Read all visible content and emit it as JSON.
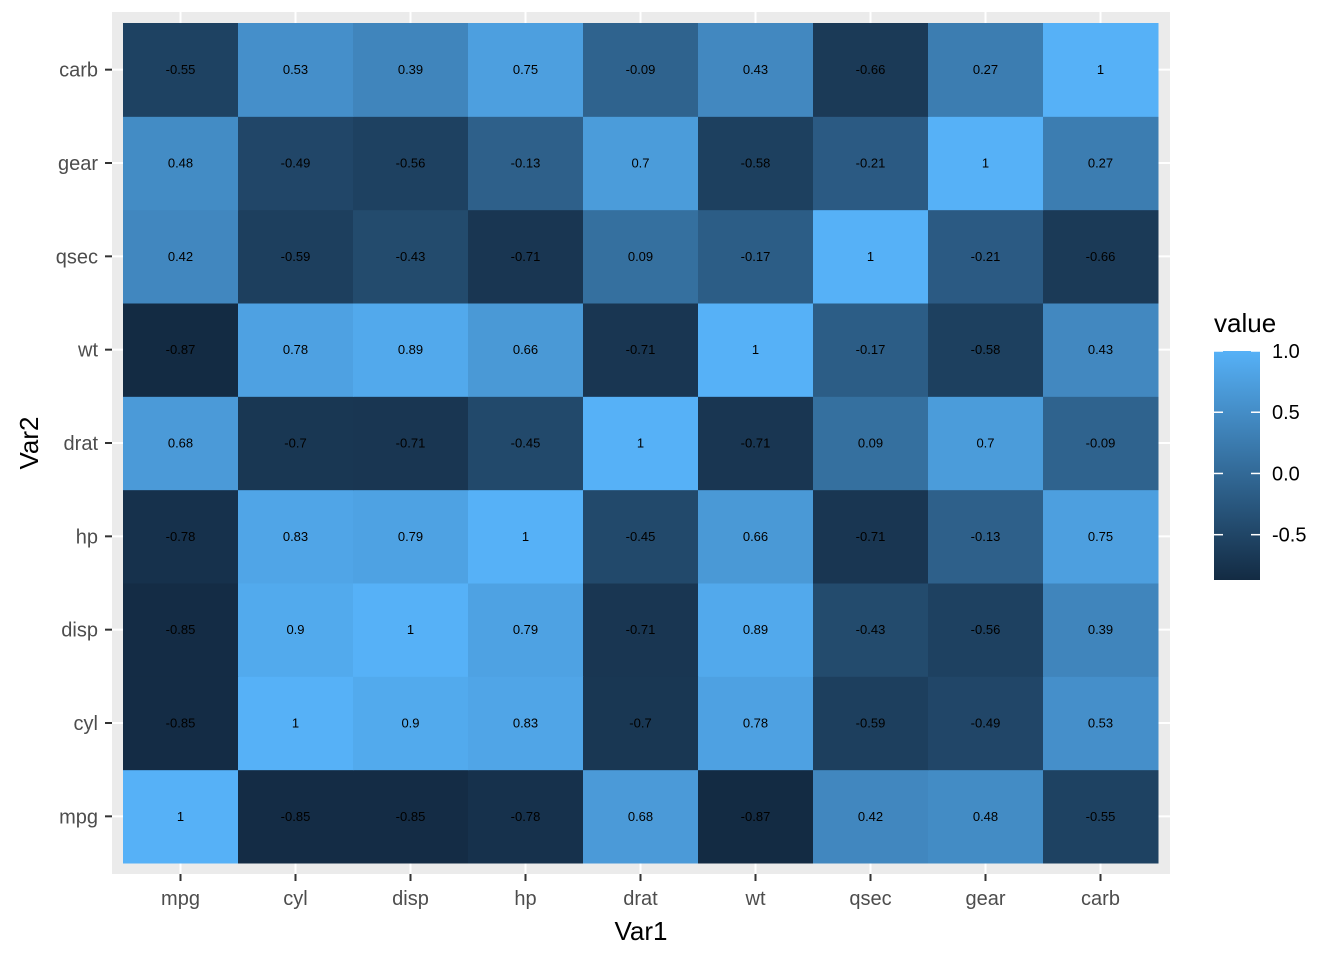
{
  "chart_data": {
    "type": "heatmap",
    "title": "",
    "xlabel": "Var1",
    "ylabel": "Var2",
    "x_categories": [
      "mpg",
      "cyl",
      "disp",
      "hp",
      "drat",
      "wt",
      "qsec",
      "gear",
      "carb"
    ],
    "y_categories": [
      "mpg",
      "cyl",
      "disp",
      "hp",
      "drat",
      "wt",
      "qsec",
      "gear",
      "carb"
    ],
    "values": [
      [
        1,
        -0.85,
        -0.85,
        -0.78,
        0.68,
        -0.87,
        0.42,
        0.48,
        -0.55
      ],
      [
        -0.85,
        1,
        0.9,
        0.83,
        -0.7,
        0.78,
        -0.59,
        -0.49,
        0.53
      ],
      [
        -0.85,
        0.9,
        1,
        0.79,
        -0.71,
        0.89,
        -0.43,
        -0.56,
        0.39
      ],
      [
        -0.78,
        0.83,
        0.79,
        1,
        -0.45,
        0.66,
        -0.71,
        -0.13,
        0.75
      ],
      [
        0.68,
        -0.7,
        -0.71,
        -0.45,
        1,
        -0.71,
        0.09,
        0.7,
        -0.09
      ],
      [
        -0.87,
        0.78,
        0.89,
        0.66,
        -0.71,
        1,
        -0.17,
        -0.58,
        0.43
      ],
      [
        0.42,
        -0.59,
        -0.43,
        -0.71,
        0.09,
        -0.17,
        1,
        -0.21,
        -0.66
      ],
      [
        0.48,
        -0.49,
        -0.56,
        -0.13,
        0.7,
        -0.58,
        -0.21,
        1,
        0.27
      ],
      [
        -0.55,
        0.53,
        0.39,
        0.75,
        -0.09,
        0.43,
        -0.66,
        0.27,
        1
      ]
    ],
    "legend": {
      "title": "value",
      "ticks": [
        1.0,
        0.5,
        0.0,
        -0.5
      ],
      "tick_labels": [
        "1.0",
        "0.5",
        "0.0",
        "-0.5"
      ],
      "range": [
        -0.87,
        1.0
      ],
      "position": "right"
    },
    "color_scale": {
      "low": "#132B43",
      "high": "#56B1F7"
    },
    "grid": true
  },
  "colors": {
    "panel_background": "#EBEBEB",
    "grid_line": "#FFFFFF",
    "tick_mark": "#333333"
  }
}
